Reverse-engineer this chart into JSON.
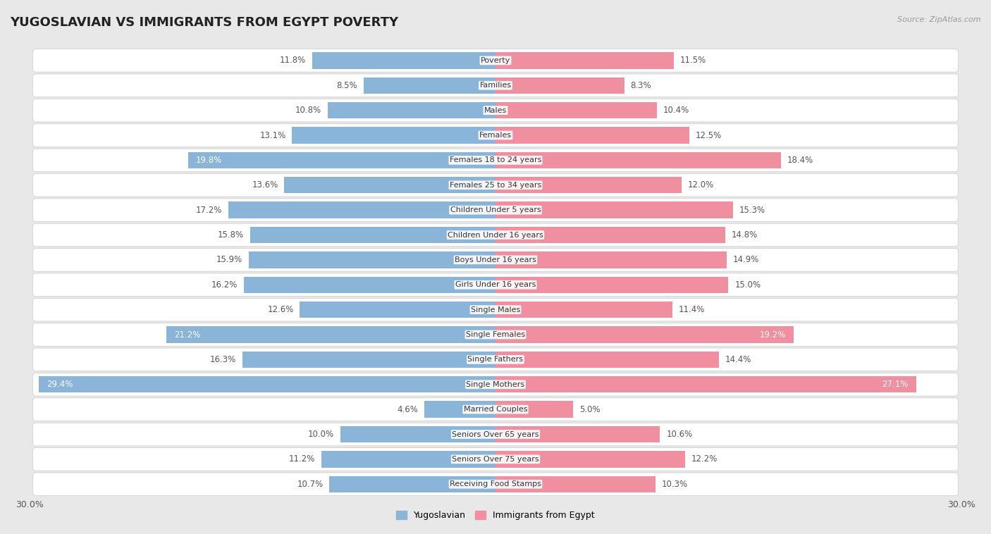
{
  "title": "YUGOSLAVIAN VS IMMIGRANTS FROM EGYPT POVERTY",
  "source": "Source: ZipAtlas.com",
  "categories": [
    "Poverty",
    "Families",
    "Males",
    "Females",
    "Females 18 to 24 years",
    "Females 25 to 34 years",
    "Children Under 5 years",
    "Children Under 16 years",
    "Boys Under 16 years",
    "Girls Under 16 years",
    "Single Males",
    "Single Females",
    "Single Fathers",
    "Single Mothers",
    "Married Couples",
    "Seniors Over 65 years",
    "Seniors Over 75 years",
    "Receiving Food Stamps"
  ],
  "left_values": [
    11.8,
    8.5,
    10.8,
    13.1,
    19.8,
    13.6,
    17.2,
    15.8,
    15.9,
    16.2,
    12.6,
    21.2,
    16.3,
    29.4,
    4.6,
    10.0,
    11.2,
    10.7
  ],
  "right_values": [
    11.5,
    8.3,
    10.4,
    12.5,
    18.4,
    12.0,
    15.3,
    14.8,
    14.9,
    15.0,
    11.4,
    19.2,
    14.4,
    27.1,
    5.0,
    10.6,
    12.2,
    10.3
  ],
  "left_color": "#8ab4d8",
  "right_color": "#f08fa0",
  "left_label": "Yugoslavian",
  "right_label": "Immigrants from Egypt",
  "axis_limit": 30.0,
  "label_inside_threshold": 18.5,
  "bg_color": "#e8e8e8",
  "row_bg_color": "#ffffff",
  "title_fontsize": 13,
  "bar_label_fontsize": 8.5,
  "category_fontsize": 8.0
}
